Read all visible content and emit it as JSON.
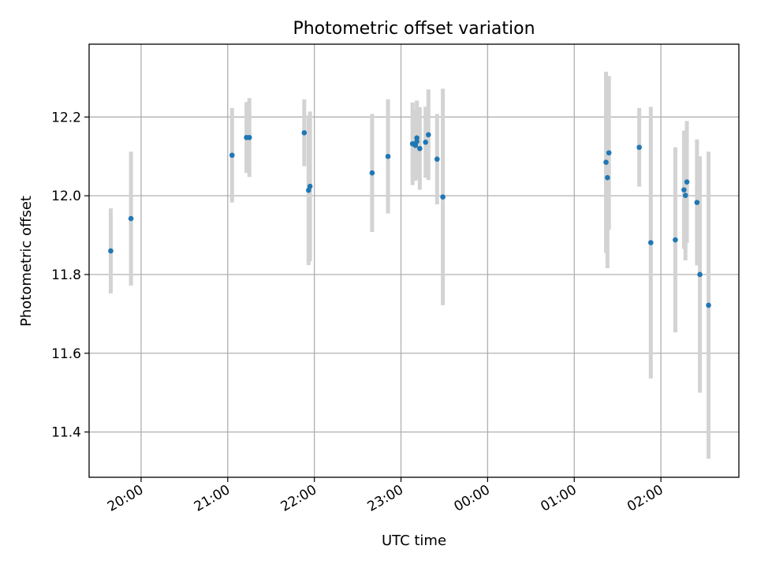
{
  "chart_data": {
    "type": "scatter",
    "title": "Photometric offset variation",
    "xlabel": "UTC time",
    "ylabel": "Photometric offset",
    "x_is_time": true,
    "x_ticks": [
      "20:00",
      "21:00",
      "22:00",
      "23:00",
      "00:00",
      "01:00",
      "02:00"
    ],
    "y_ticks": [
      11.4,
      11.6,
      11.8,
      12.0,
      12.2
    ],
    "xlim": [
      "19:24",
      "02:54"
    ],
    "ylim": [
      11.285,
      12.385
    ],
    "grid": true,
    "colors": {
      "points": "#1f77b4",
      "errorbars": "#d3d3d3",
      "grid": "#b0b0b0"
    },
    "points": [
      {
        "t": "19:39",
        "y": 11.86,
        "err": 0.108
      },
      {
        "t": "19:53",
        "y": 11.942,
        "err": 0.17
      },
      {
        "t": "21:03",
        "y": 12.103,
        "err": 0.12
      },
      {
        "t": "21:13",
        "y": 12.148,
        "err": 0.09
      },
      {
        "t": "21:15",
        "y": 12.148,
        "err": 0.1
      },
      {
        "t": "21:53",
        "y": 12.16,
        "err": 0.085
      },
      {
        "t": "21:56",
        "y": 12.014,
        "err": 0.19
      },
      {
        "t": "21:57",
        "y": 12.024,
        "err": 0.19
      },
      {
        "t": "22:40",
        "y": 12.058,
        "err": 0.15
      },
      {
        "t": "22:51",
        "y": 12.1,
        "err": 0.145
      },
      {
        "t": "23:08",
        "y": 12.132,
        "err": 0.105
      },
      {
        "t": "23:10",
        "y": 12.128,
        "err": 0.09
      },
      {
        "t": "23:11",
        "y": 12.138,
        "err": 0.095
      },
      {
        "t": "23:11",
        "y": 12.147,
        "err": 0.095
      },
      {
        "t": "23:13",
        "y": 12.12,
        "err": 0.105
      },
      {
        "t": "23:17",
        "y": 12.136,
        "err": 0.09
      },
      {
        "t": "23:19",
        "y": 12.155,
        "err": 0.115
      },
      {
        "t": "23:25",
        "y": 12.093,
        "err": 0.115
      },
      {
        "t": "23:29",
        "y": 11.997,
        "err": 0.275
      },
      {
        "t": "01:22",
        "y": 12.085,
        "err": 0.23
      },
      {
        "t": "01:23",
        "y": 12.046,
        "err": 0.23
      },
      {
        "t": "01:24",
        "y": 12.109,
        "err": 0.195
      },
      {
        "t": "01:45",
        "y": 12.123,
        "err": 0.1
      },
      {
        "t": "01:53",
        "y": 11.881,
        "err": 0.345
      },
      {
        "t": "02:10",
        "y": 11.888,
        "err": 0.235
      },
      {
        "t": "02:16",
        "y": 12.015,
        "err": 0.15
      },
      {
        "t": "02:17",
        "y": 12.001,
        "err": 0.165
      },
      {
        "t": "02:18",
        "y": 12.035,
        "err": 0.155
      },
      {
        "t": "02:25",
        "y": 11.983,
        "err": 0.16
      },
      {
        "t": "02:27",
        "y": 11.8,
        "err": 0.3
      },
      {
        "t": "02:33",
        "y": 11.722,
        "err": 0.39
      }
    ]
  }
}
